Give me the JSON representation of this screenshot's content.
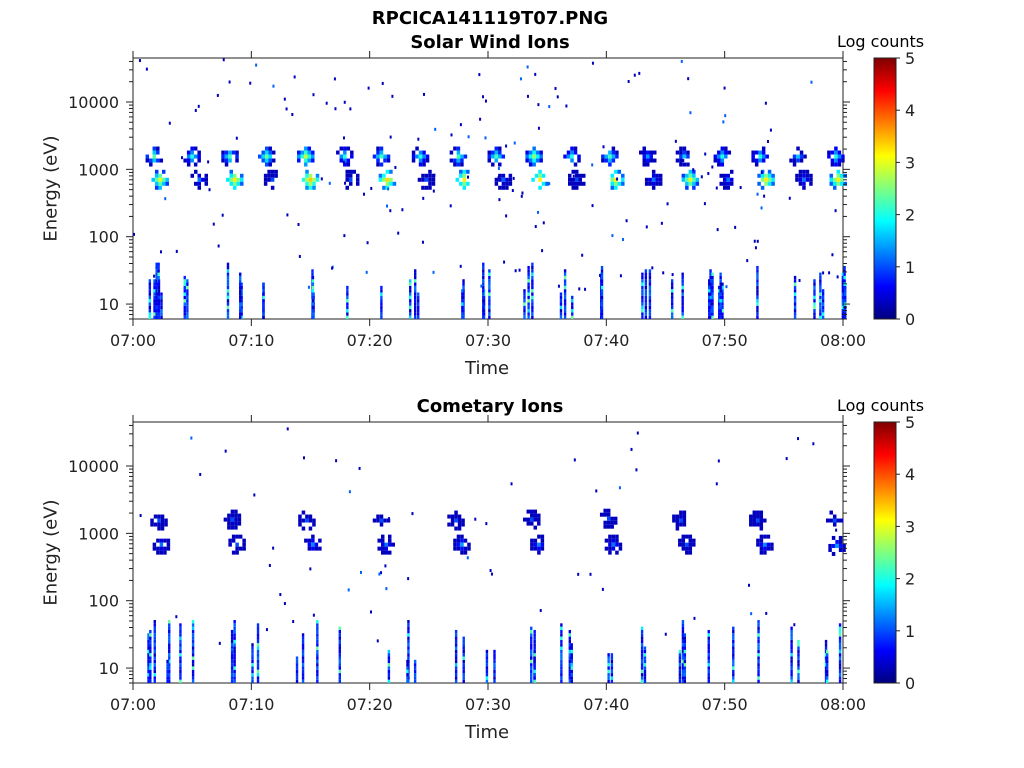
{
  "figure_title": "RPCICA141119T07.PNG",
  "colormap": [
    "#00007f",
    "#0000ff",
    "#007fff",
    "#00ffff",
    "#7fff7f",
    "#ffff00",
    "#ff7f00",
    "#ff0000",
    "#7f0000"
  ],
  "chart_data": [
    {
      "type": "heatmap",
      "title": "Solar Wind Ions",
      "xlabel": "Time",
      "ylabel": "Energy (eV)",
      "x_ticks": [
        "07:00",
        "07:10",
        "07:20",
        "07:30",
        "07:40",
        "07:50",
        "08:00"
      ],
      "x_range_minutes": [
        0,
        60
      ],
      "y_scale": "log",
      "y_ticks": [
        "10",
        "100",
        "1000",
        "10000"
      ],
      "y_tick_values": [
        10,
        100,
        1000,
        10000
      ],
      "y_range": [
        6,
        45000
      ],
      "colorbar": {
        "label": "Log counts",
        "ticks": [
          "0",
          "1",
          "2",
          "3",
          "4",
          "5"
        ],
        "range": [
          0,
          5
        ]
      },
      "swept_peaks": {
        "period_min": 3.2,
        "start_min": 1.8,
        "energies_eV": [
          1550,
          680
        ],
        "peak_log_counts": 3.0
      },
      "low_energy_bursts_min": [
        1.5,
        2.5,
        4.5,
        8.5,
        10.5,
        15,
        17.5,
        21,
        23.5,
        28,
        30,
        33.5,
        36.5,
        40,
        43,
        46,
        49,
        50,
        53,
        56,
        58,
        59.5
      ],
      "cells": [
        {
          "t": 1.8,
          "e": 1550,
          "v": 2.3
        },
        {
          "t": 2.3,
          "e": 700,
          "v": 3.0
        },
        {
          "t": 5.0,
          "e": 1550,
          "v": 2.0
        },
        {
          "t": 5.6,
          "e": 700,
          "v": 1.2
        },
        {
          "t": 8.2,
          "e": 1550,
          "v": 2.2
        },
        {
          "t": 8.6,
          "e": 700,
          "v": 3.2
        },
        {
          "t": 11.3,
          "e": 1550,
          "v": 2.4
        },
        {
          "t": 11.8,
          "e": 700,
          "v": 1.0
        },
        {
          "t": 14.6,
          "e": 1550,
          "v": 2.8
        },
        {
          "t": 15.0,
          "e": 700,
          "v": 3.4
        },
        {
          "t": 17.9,
          "e": 1550,
          "v": 2.0
        },
        {
          "t": 18.4,
          "e": 700,
          "v": 1.0
        },
        {
          "t": 21.0,
          "e": 1550,
          "v": 2.2
        },
        {
          "t": 21.5,
          "e": 700,
          "v": 3.3
        },
        {
          "t": 24.3,
          "e": 1550,
          "v": 2.0
        },
        {
          "t": 24.8,
          "e": 700,
          "v": 1.0
        },
        {
          "t": 27.5,
          "e": 1550,
          "v": 2.2
        },
        {
          "t": 28.0,
          "e": 700,
          "v": 3.2
        },
        {
          "t": 30.7,
          "e": 1550,
          "v": 2.2
        },
        {
          "t": 31.3,
          "e": 700,
          "v": 1.1
        },
        {
          "t": 33.9,
          "e": 1550,
          "v": 2.6
        },
        {
          "t": 34.4,
          "e": 700,
          "v": 3.2
        },
        {
          "t": 37.1,
          "e": 1550,
          "v": 2.0
        },
        {
          "t": 37.5,
          "e": 700,
          "v": 1.0
        },
        {
          "t": 40.3,
          "e": 1550,
          "v": 2.2
        },
        {
          "t": 40.8,
          "e": 700,
          "v": 3.2
        },
        {
          "t": 43.5,
          "e": 1550,
          "v": 1.4
        },
        {
          "t": 44.0,
          "e": 700,
          "v": 1.2
        },
        {
          "t": 46.6,
          "e": 1550,
          "v": 1.6
        },
        {
          "t": 47.1,
          "e": 700,
          "v": 3.0
        },
        {
          "t": 49.8,
          "e": 1550,
          "v": 2.0
        },
        {
          "t": 50.3,
          "e": 700,
          "v": 1.2
        },
        {
          "t": 53.0,
          "e": 1550,
          "v": 2.0
        },
        {
          "t": 53.5,
          "e": 700,
          "v": 3.2
        },
        {
          "t": 56.2,
          "e": 1550,
          "v": 1.6
        },
        {
          "t": 56.7,
          "e": 700,
          "v": 1.2
        },
        {
          "t": 59.4,
          "e": 1550,
          "v": 2.0
        },
        {
          "t": 59.6,
          "e": 700,
          "v": 3.2
        }
      ]
    },
    {
      "type": "heatmap",
      "title": "Cometary Ions",
      "xlabel": "Time",
      "ylabel": "Energy (eV)",
      "x_ticks": [
        "07:00",
        "07:10",
        "07:20",
        "07:30",
        "07:40",
        "07:50",
        "08:00"
      ],
      "x_range_minutes": [
        0,
        60
      ],
      "y_scale": "log",
      "y_ticks": [
        "10",
        "100",
        "1000",
        "10000"
      ],
      "y_tick_values": [
        10,
        100,
        1000,
        10000
      ],
      "y_range": [
        6,
        45000
      ],
      "colorbar": {
        "label": "Log counts",
        "ticks": [
          "0",
          "1",
          "2",
          "3",
          "4",
          "5"
        ],
        "range": [
          0,
          5
        ]
      },
      "swept_peaks": {
        "period_min": 3.2,
        "start_min": 1.8,
        "energies_eV": [
          1550,
          680
        ],
        "peak_log_counts": 1.5
      },
      "low_energy_bursts_min": [
        1.5,
        2.5,
        4.5,
        8.5,
        10.5,
        14,
        15,
        17.5,
        21,
        23.5,
        27.5,
        30,
        33.5,
        36.5,
        40,
        43,
        46.5,
        49,
        50.5,
        53,
        56,
        58.5,
        59.5
      ],
      "cells": [
        {
          "t": 2.2,
          "e": 1550,
          "v": 1.0
        },
        {
          "t": 2.4,
          "e": 680,
          "v": 1.2
        },
        {
          "t": 8.4,
          "e": 1600,
          "v": 1.0
        },
        {
          "t": 8.8,
          "e": 680,
          "v": 1.0
        },
        {
          "t": 14.7,
          "e": 1550,
          "v": 1.0
        },
        {
          "t": 15.2,
          "e": 680,
          "v": 1.3
        },
        {
          "t": 21.0,
          "e": 1550,
          "v": 1.0
        },
        {
          "t": 21.4,
          "e": 680,
          "v": 1.2
        },
        {
          "t": 27.3,
          "e": 1550,
          "v": 1.0
        },
        {
          "t": 27.8,
          "e": 680,
          "v": 1.4
        },
        {
          "t": 33.7,
          "e": 1600,
          "v": 1.0
        },
        {
          "t": 34.3,
          "e": 680,
          "v": 1.3
        },
        {
          "t": 40.2,
          "e": 1650,
          "v": 1.0
        },
        {
          "t": 40.6,
          "e": 680,
          "v": 1.2
        },
        {
          "t": 46.3,
          "e": 1550,
          "v": 1.0
        },
        {
          "t": 46.8,
          "e": 680,
          "v": 1.0
        },
        {
          "t": 52.8,
          "e": 1550,
          "v": 1.0
        },
        {
          "t": 53.4,
          "e": 680,
          "v": 1.3
        },
        {
          "t": 59.3,
          "e": 1550,
          "v": 1.0
        },
        {
          "t": 59.5,
          "e": 650,
          "v": 1.4
        }
      ]
    }
  ]
}
